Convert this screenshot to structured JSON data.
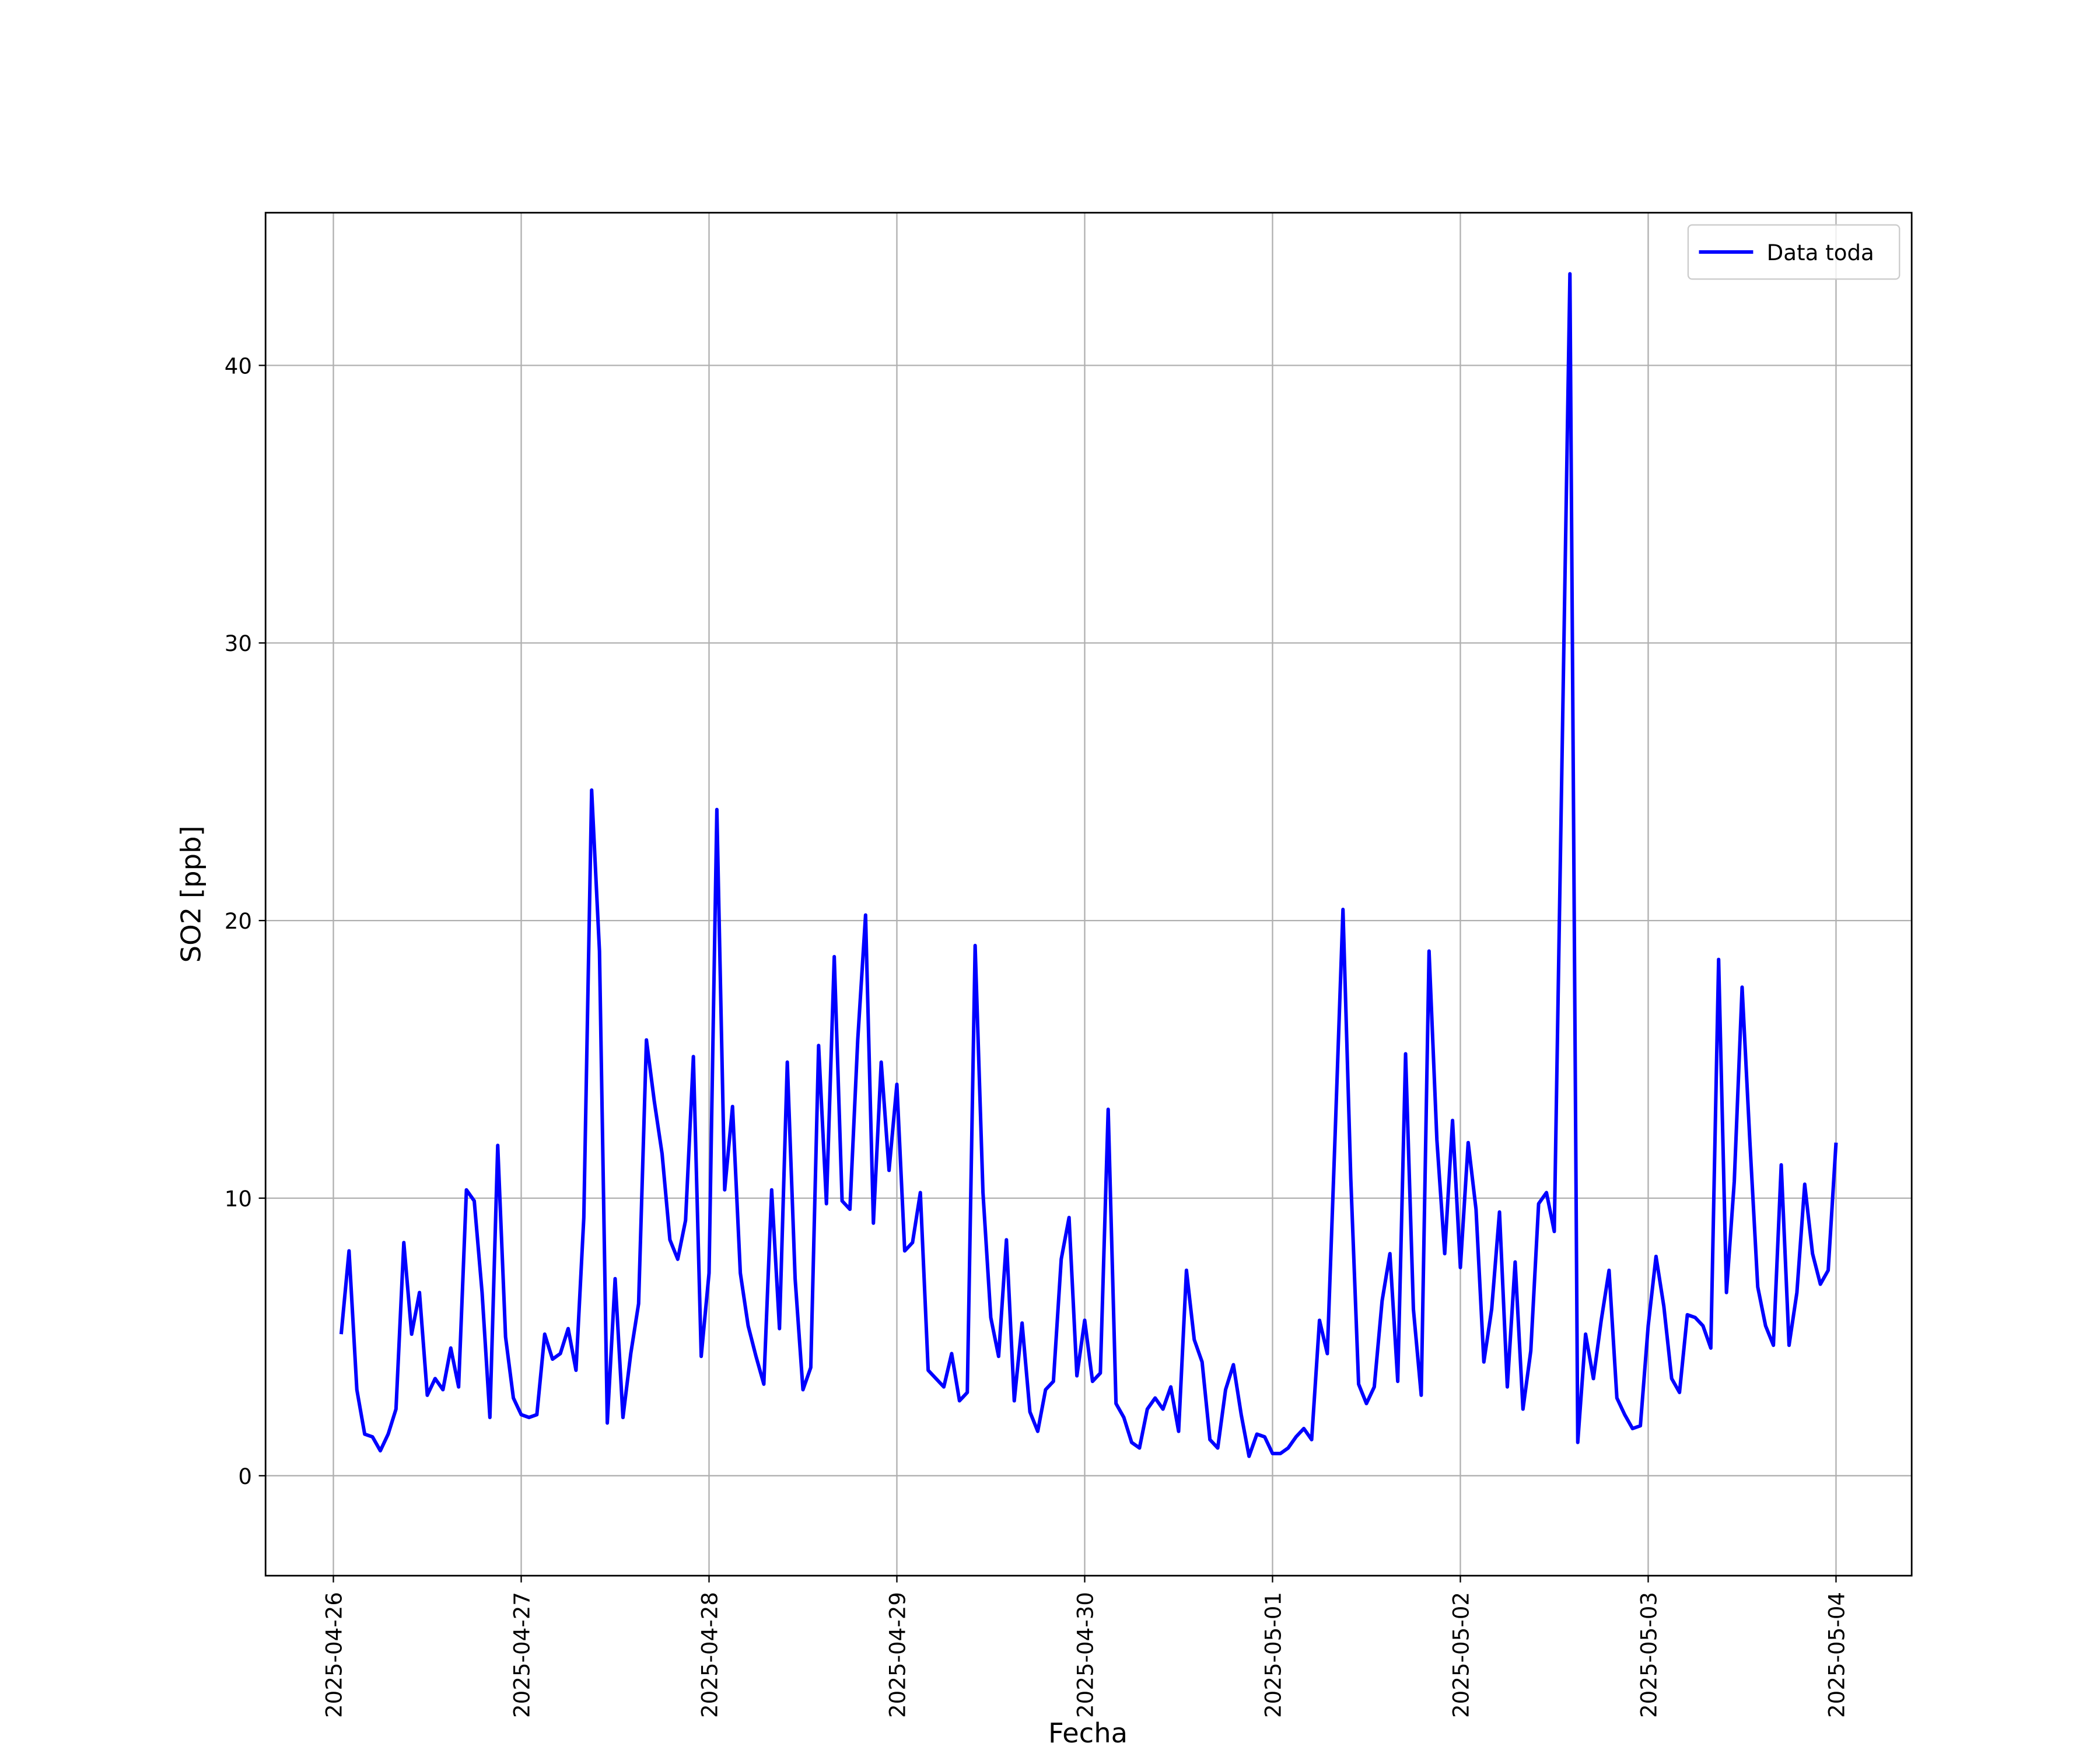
{
  "chart_data": {
    "type": "line",
    "xlabel": "Fecha",
    "ylabel": "SO2 [ppb]",
    "x": [
      "2025-04-26 01:00",
      "2025-04-26 02:00",
      "2025-04-26 03:00",
      "2025-04-26 04:00",
      "2025-04-26 05:00",
      "2025-04-26 06:00",
      "2025-04-26 07:00",
      "2025-04-26 08:00",
      "2025-04-26 09:00",
      "2025-04-26 10:00",
      "2025-04-26 11:00",
      "2025-04-26 12:00",
      "2025-04-26 13:00",
      "2025-04-26 14:00",
      "2025-04-26 15:00",
      "2025-04-26 16:00",
      "2025-04-26 17:00",
      "2025-04-26 18:00",
      "2025-04-26 19:00",
      "2025-04-26 20:00",
      "2025-04-26 21:00",
      "2025-04-26 22:00",
      "2025-04-26 23:00",
      "2025-04-27 00:00",
      "2025-04-27 01:00",
      "2025-04-27 02:00",
      "2025-04-27 03:00",
      "2025-04-27 04:00",
      "2025-04-27 05:00",
      "2025-04-27 06:00",
      "2025-04-27 07:00",
      "2025-04-27 08:00",
      "2025-04-27 09:00",
      "2025-04-27 10:00",
      "2025-04-27 11:00",
      "2025-04-27 12:00",
      "2025-04-27 13:00",
      "2025-04-27 14:00",
      "2025-04-27 15:00",
      "2025-04-27 16:00",
      "2025-04-27 17:00",
      "2025-04-27 18:00",
      "2025-04-27 19:00",
      "2025-04-27 20:00",
      "2025-04-27 21:00",
      "2025-04-27 22:00",
      "2025-04-27 23:00",
      "2025-04-28 00:00",
      "2025-04-28 01:00",
      "2025-04-28 02:00",
      "2025-04-28 03:00",
      "2025-04-28 04:00",
      "2025-04-28 05:00",
      "2025-04-28 06:00",
      "2025-04-28 07:00",
      "2025-04-28 08:00",
      "2025-04-28 09:00",
      "2025-04-28 10:00",
      "2025-04-28 11:00",
      "2025-04-28 12:00",
      "2025-04-28 13:00",
      "2025-04-28 14:00",
      "2025-04-28 15:00",
      "2025-04-28 16:00",
      "2025-04-28 17:00",
      "2025-04-28 18:00",
      "2025-04-28 19:00",
      "2025-04-28 20:00",
      "2025-04-28 21:00",
      "2025-04-28 22:00",
      "2025-04-28 23:00",
      "2025-04-29 00:00",
      "2025-04-29 01:00",
      "2025-04-29 02:00",
      "2025-04-29 03:00",
      "2025-04-29 04:00",
      "2025-04-29 05:00",
      "2025-04-29 06:00",
      "2025-04-29 07:00",
      "2025-04-29 08:00",
      "2025-04-29 09:00",
      "2025-04-29 10:00",
      "2025-04-29 11:00",
      "2025-04-29 12:00",
      "2025-04-29 13:00",
      "2025-04-29 14:00",
      "2025-04-29 15:00",
      "2025-04-29 16:00",
      "2025-04-29 17:00",
      "2025-04-29 18:00",
      "2025-04-29 19:00",
      "2025-04-29 20:00",
      "2025-04-29 21:00",
      "2025-04-29 22:00",
      "2025-04-29 23:00",
      "2025-04-30 00:00",
      "2025-04-30 01:00",
      "2025-04-30 02:00",
      "2025-04-30 03:00",
      "2025-04-30 04:00",
      "2025-04-30 05:00",
      "2025-04-30 06:00",
      "2025-04-30 07:00",
      "2025-04-30 08:00",
      "2025-04-30 09:00",
      "2025-04-30 10:00",
      "2025-04-30 11:00",
      "2025-04-30 12:00",
      "2025-04-30 13:00",
      "2025-04-30 14:00",
      "2025-04-30 15:00",
      "2025-04-30 16:00",
      "2025-04-30 17:00",
      "2025-04-30 18:00",
      "2025-04-30 19:00",
      "2025-04-30 20:00",
      "2025-04-30 21:00",
      "2025-04-30 22:00",
      "2025-04-30 23:00",
      "2025-05-01 00:00",
      "2025-05-01 01:00",
      "2025-05-01 02:00",
      "2025-05-01 03:00",
      "2025-05-01 04:00",
      "2025-05-01 05:00",
      "2025-05-01 06:00",
      "2025-05-01 07:00",
      "2025-05-01 08:00",
      "2025-05-01 09:00",
      "2025-05-01 10:00",
      "2025-05-01 11:00",
      "2025-05-01 12:00",
      "2025-05-01 13:00",
      "2025-05-01 14:00",
      "2025-05-01 15:00",
      "2025-05-01 16:00",
      "2025-05-01 17:00",
      "2025-05-01 18:00",
      "2025-05-01 19:00",
      "2025-05-01 20:00",
      "2025-05-01 21:00",
      "2025-05-01 22:00",
      "2025-05-01 23:00",
      "2025-05-02 00:00",
      "2025-05-02 01:00",
      "2025-05-02 02:00",
      "2025-05-02 03:00",
      "2025-05-02 04:00",
      "2025-05-02 05:00",
      "2025-05-02 06:00",
      "2025-05-02 07:00",
      "2025-05-02 08:00",
      "2025-05-02 09:00",
      "2025-05-02 10:00",
      "2025-05-02 11:00",
      "2025-05-02 12:00",
      "2025-05-02 13:00",
      "2025-05-02 14:00",
      "2025-05-02 15:00",
      "2025-05-02 16:00",
      "2025-05-02 17:00",
      "2025-05-02 18:00",
      "2025-05-02 19:00",
      "2025-05-02 20:00",
      "2025-05-02 21:00",
      "2025-05-02 22:00",
      "2025-05-02 23:00",
      "2025-05-03 00:00",
      "2025-05-03 01:00",
      "2025-05-03 02:00",
      "2025-05-03 03:00",
      "2025-05-03 04:00",
      "2025-05-03 05:00",
      "2025-05-03 06:00",
      "2025-05-03 07:00",
      "2025-05-03 08:00",
      "2025-05-03 09:00",
      "2025-05-03 10:00",
      "2025-05-03 11:00",
      "2025-05-03 12:00",
      "2025-05-03 13:00",
      "2025-05-03 14:00",
      "2025-05-03 15:00",
      "2025-05-03 16:00",
      "2025-05-03 17:00",
      "2025-05-03 18:00",
      "2025-05-03 19:00",
      "2025-05-03 20:00",
      "2025-05-03 21:00",
      "2025-05-03 22:00",
      "2025-05-03 23:00",
      "2025-05-04 00:00"
    ],
    "series": [
      {
        "name": "Data toda",
        "color": "#0000ff",
        "values": [
          5.1,
          8.1,
          3.1,
          1.5,
          1.4,
          0.9,
          1.5,
          2.4,
          8.4,
          5.1,
          6.6,
          2.9,
          3.5,
          3.1,
          4.6,
          3.2,
          10.3,
          9.9,
          6.6,
          2.1,
          11.9,
          5.0,
          2.8,
          2.2,
          2.1,
          2.2,
          5.1,
          4.2,
          4.4,
          5.3,
          3.8,
          9.3,
          24.7,
          18.9,
          1.9,
          7.1,
          2.1,
          4.4,
          6.2,
          15.7,
          13.5,
          11.6,
          8.5,
          7.8,
          9.2,
          15.1,
          4.3,
          7.3,
          24.0,
          10.3,
          13.3,
          7.3,
          5.4,
          4.3,
          3.3,
          10.3,
          5.3,
          14.9,
          7.1,
          3.1,
          3.9,
          15.5,
          9.8,
          18.7,
          9.9,
          9.6,
          15.7,
          20.2,
          9.1,
          14.9,
          11.0,
          14.1,
          8.1,
          8.4,
          10.2,
          3.8,
          3.5,
          3.2,
          4.4,
          2.7,
          3.0,
          19.1,
          10.2,
          5.7,
          4.3,
          8.5,
          2.7,
          5.5,
          2.3,
          1.6,
          3.1,
          3.4,
          7.8,
          9.3,
          3.6,
          5.6,
          3.4,
          3.7,
          13.2,
          2.6,
          2.1,
          1.2,
          1.0,
          2.4,
          2.8,
          2.4,
          3.2,
          1.6,
          7.4,
          4.9,
          4.1,
          1.3,
          1.0,
          3.1,
          4.0,
          2.2,
          0.7,
          1.5,
          1.4,
          0.8,
          0.8,
          1.0,
          1.4,
          1.7,
          1.3,
          5.6,
          4.4,
          12.3,
          20.4,
          10.7,
          3.3,
          2.6,
          3.2,
          6.3,
          8.0,
          3.4,
          15.2,
          6.0,
          2.9,
          18.9,
          12.1,
          8.0,
          12.8,
          7.5,
          12.0,
          9.6,
          4.1,
          6.0,
          9.5,
          3.2,
          7.7,
          2.4,
          4.5,
          9.8,
          10.2,
          8.8,
          26.0,
          43.3,
          1.2,
          5.1,
          3.5,
          5.6,
          7.4,
          2.8,
          2.2,
          1.7,
          1.8,
          5.4,
          7.9,
          6.1,
          3.5,
          3.0,
          5.8,
          5.7,
          5.4,
          4.6,
          18.6,
          6.6,
          10.6,
          17.6,
          12.0,
          6.8,
          5.4,
          4.7,
          11.2,
          4.7,
          6.6,
          10.5,
          8.0,
          6.9,
          7.4,
          12.0
        ]
      }
    ],
    "xlim": [
      "2025-04-25 15:20",
      "2025-05-04 09:40"
    ],
    "xticks": [
      "2025-04-26",
      "2025-04-27",
      "2025-04-28",
      "2025-04-29",
      "2025-04-30",
      "2025-05-01",
      "2025-05-02",
      "2025-05-03",
      "2025-05-04"
    ],
    "ylim": [
      -3.6,
      45.5
    ],
    "yticks": [
      0,
      10,
      20,
      30,
      40
    ],
    "grid": true,
    "legend": "upper right"
  }
}
